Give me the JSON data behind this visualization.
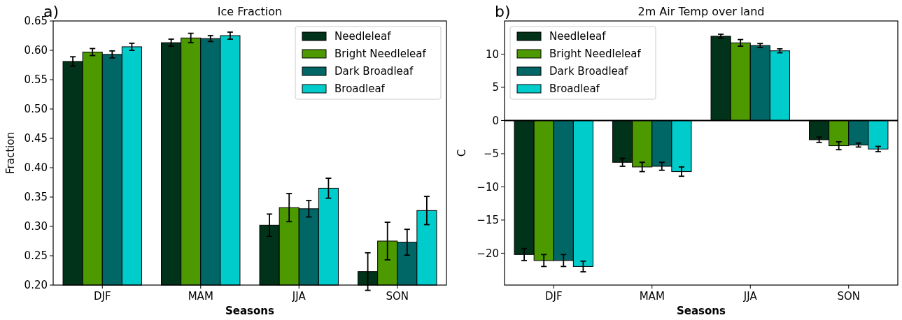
{
  "chart_data": [
    {
      "type": "bar",
      "title": "Ice Fraction",
      "xlabel": "Seasons",
      "ylabel": "Fraction",
      "annotations": [
        "a)"
      ],
      "categories": [
        "DJF",
        "MAM",
        "JJA",
        "SON"
      ],
      "legend": "top right",
      "ylim": [
        0.2,
        0.65
      ],
      "yticks": [
        {
          "value": 0.2,
          "label": "0.20"
        },
        {
          "value": 0.25,
          "label": "0.25"
        },
        {
          "value": 0.3,
          "label": "0.30"
        },
        {
          "value": 0.35,
          "label": "0.35"
        },
        {
          "value": 0.4,
          "label": "0.40"
        },
        {
          "value": 0.45,
          "label": "0.45"
        },
        {
          "value": 0.5,
          "label": "0.50"
        },
        {
          "value": 0.55,
          "label": "0.55"
        },
        {
          "value": 0.6,
          "label": "0.60"
        },
        {
          "value": 0.65,
          "label": "0.65"
        }
      ],
      "series": [
        {
          "name": "Needleleaf",
          "color": "#003319",
          "values": [
            0.581,
            0.613,
            0.302,
            0.223
          ],
          "errors": [
            0.008,
            0.006,
            0.019,
            0.032
          ]
        },
        {
          "name": "Bright Needleleaf",
          "color": "#4c9900",
          "values": [
            0.597,
            0.621,
            0.332,
            0.275
          ],
          "errors": [
            0.006,
            0.008,
            0.024,
            0.032
          ]
        },
        {
          "name": "Dark Broadleaf",
          "color": "#006666",
          "values": [
            0.593,
            0.62,
            0.33,
            0.273
          ],
          "errors": [
            0.006,
            0.005,
            0.014,
            0.022
          ]
        },
        {
          "name": "Broadleaf",
          "color": "#00cccc",
          "values": [
            0.606,
            0.625,
            0.365,
            0.327
          ],
          "errors": [
            0.006,
            0.006,
            0.017,
            0.024
          ]
        }
      ]
    },
    {
      "type": "bar",
      "title": "2m Air Temp over land",
      "xlabel": "Seasons",
      "ylabel": "C",
      "annotations": [
        "b)"
      ],
      "categories": [
        "DJF",
        "MAM",
        "JJA",
        "SON"
      ],
      "legend": "top left",
      "ylim": [
        -24.8,
        15.0
      ],
      "yticks": [
        {
          "value": -20,
          "label": "−20"
        },
        {
          "value": -15,
          "label": "−15"
        },
        {
          "value": -10,
          "label": "−10"
        },
        {
          "value": -5,
          "label": "−5"
        },
        0,
        5,
        10
      ],
      "ref_lines": [
        {
          "axis": "y",
          "value": 0,
          "color": "#000000"
        }
      ],
      "series": [
        {
          "name": "Needleleaf",
          "color": "#003319",
          "values": [
            -20.2,
            -6.3,
            12.7,
            -2.9
          ],
          "errors": [
            0.9,
            0.6,
            0.3,
            0.4
          ]
        },
        {
          "name": "Bright Needleleaf",
          "color": "#4c9900",
          "values": [
            -21.1,
            -7.0,
            11.7,
            -3.8
          ],
          "errors": [
            0.9,
            0.7,
            0.5,
            0.6
          ]
        },
        {
          "name": "Dark Broadleaf",
          "color": "#006666",
          "values": [
            -21.1,
            -6.9,
            11.3,
            -3.7
          ],
          "errors": [
            0.9,
            0.6,
            0.3,
            0.3
          ]
        },
        {
          "name": "Broadleaf",
          "color": "#00cccc",
          "values": [
            -22.0,
            -7.7,
            10.5,
            -4.3
          ],
          "errors": [
            0.8,
            0.7,
            0.3,
            0.4
          ]
        }
      ]
    }
  ]
}
